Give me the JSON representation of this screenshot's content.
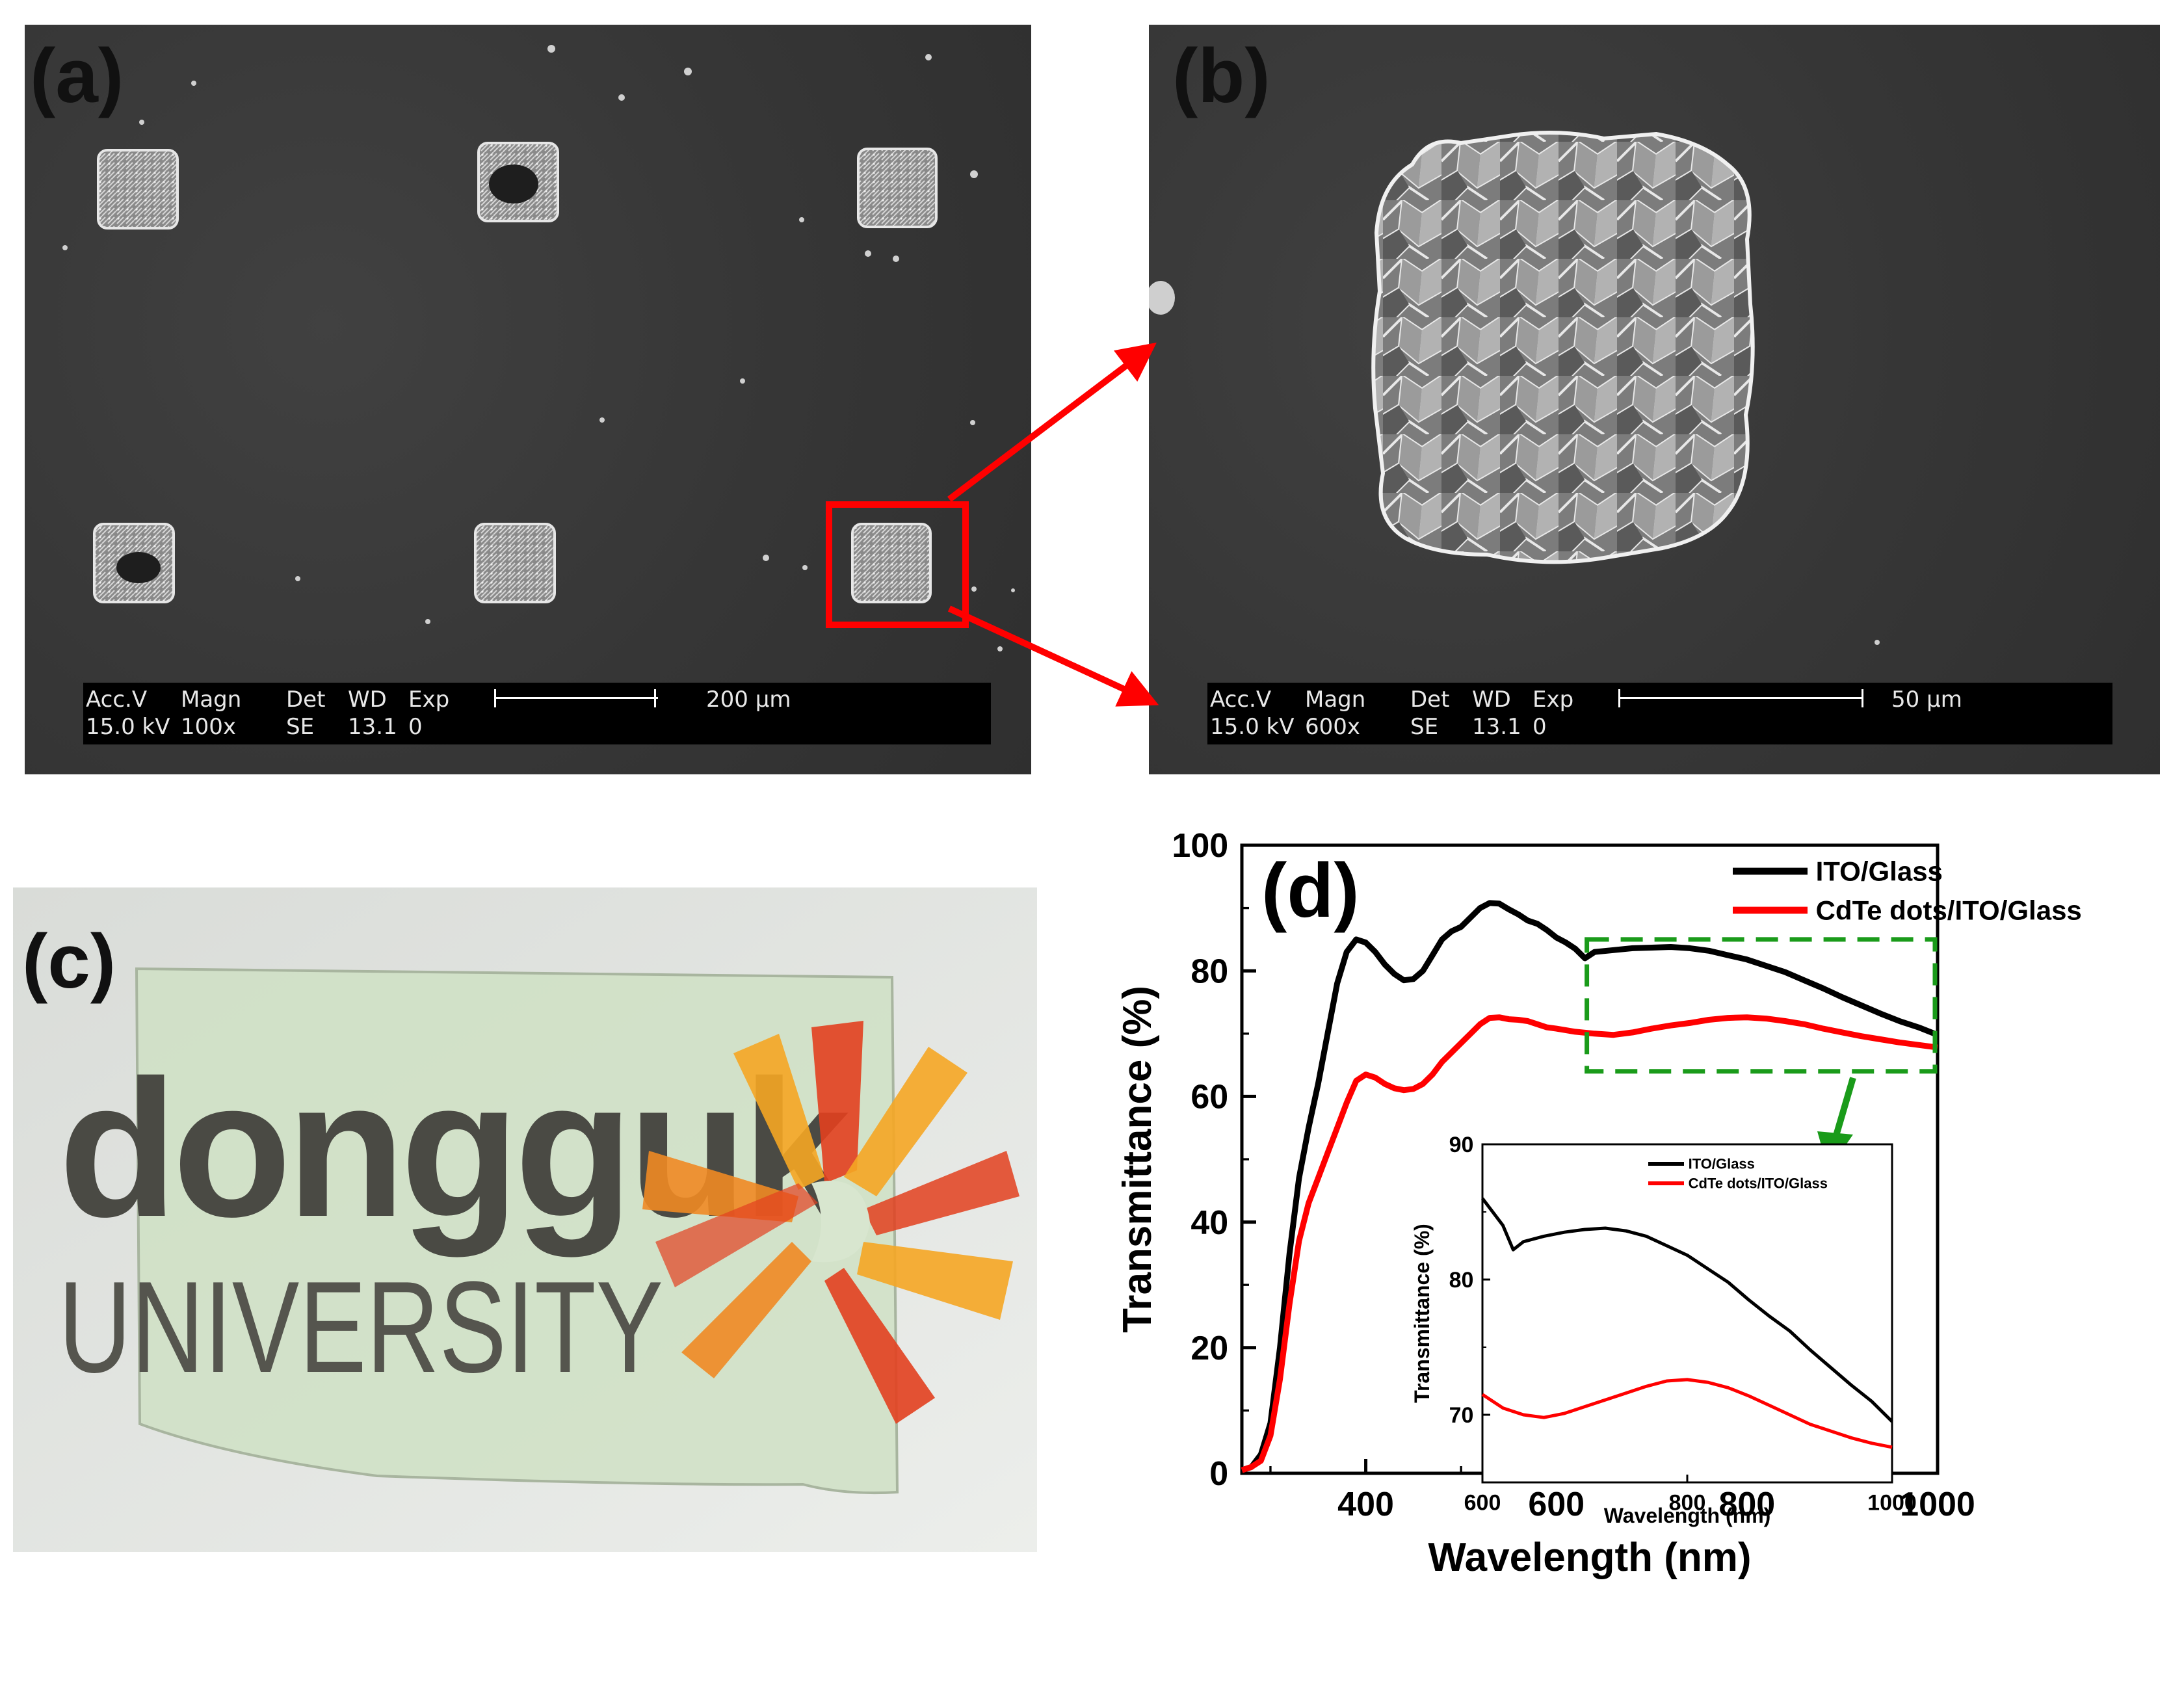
{
  "panels": {
    "a": {
      "letter": "(a)"
    },
    "b": {
      "letter": "(b)"
    },
    "c": {
      "letter": "(c)"
    },
    "d": {
      "letter": "(d)"
    }
  },
  "sem_a": {
    "headers": [
      "Acc.V",
      "Magn",
      "Det",
      "WD",
      "Exp"
    ],
    "values": [
      "15.0 kV",
      "100x",
      "SE",
      "13.1",
      "0"
    ],
    "scale_label": "200 µm"
  },
  "sem_b": {
    "headers": [
      "Acc.V",
      "Magn",
      "Det",
      "WD",
      "Exp"
    ],
    "values": [
      "15.0 kV",
      "600x",
      "SE",
      "13.1",
      "0"
    ],
    "scale_label": "50 µm"
  },
  "photo_c": {
    "logo_line1": "dongguk",
    "logo_line2": "UNIVERSITY",
    "colors": {
      "orange": "#f08a24",
      "red": "#e2401f",
      "yellow": "#f5a623",
      "glass": "#cfe0c4"
    }
  },
  "colors": {
    "ito": "#000000",
    "cdte": "#ff0000",
    "highlight": "#ff0000",
    "zoom_box": "#1a9b1a"
  },
  "chart_data": [
    {
      "type": "line",
      "xlabel": "Wavelength (nm)",
      "ylabel": "Transmittance (%)",
      "xlim": [
        270,
        1000
      ],
      "ylim": [
        0,
        100
      ],
      "xticks": [
        "400",
        "600",
        "800",
        "1000"
      ],
      "yticks": [
        "0",
        "20",
        "40",
        "60",
        "80",
        "100"
      ],
      "legend_position": "top-right",
      "series": [
        {
          "name": "ITO/Glass",
          "color": "#000000",
          "x": [
            270,
            280,
            290,
            300,
            310,
            320,
            330,
            340,
            350,
            360,
            370,
            380,
            390,
            400,
            410,
            420,
            430,
            440,
            450,
            460,
            470,
            480,
            490,
            500,
            510,
            520,
            530,
            540,
            550,
            560,
            570,
            580,
            590,
            600,
            610,
            620,
            630,
            640,
            660,
            680,
            700,
            720,
            740,
            760,
            780,
            800,
            820,
            840,
            860,
            880,
            900,
            920,
            940,
            960,
            980,
            1000
          ],
          "y": [
            0.5,
            1,
            3,
            8,
            20,
            35,
            47,
            55,
            62,
            70,
            78,
            83,
            85,
            84.5,
            83,
            81,
            79.5,
            78.5,
            78.7,
            80,
            82.5,
            85,
            86.3,
            87,
            88.5,
            90,
            90.8,
            90.7,
            89.8,
            89,
            88,
            87.5,
            86.5,
            85.3,
            84.5,
            83.5,
            82,
            83,
            83.3,
            83.6,
            83.7,
            83.8,
            83.6,
            83.2,
            82.5,
            81.8,
            80.8,
            79.8,
            78.5,
            77.2,
            75.8,
            74.5,
            73.2,
            72,
            71,
            69.8
          ]
        },
        {
          "name": "CdTe dots/ITO/Glass",
          "color": "#ff0000",
          "x": [
            270,
            280,
            290,
            300,
            310,
            320,
            330,
            340,
            350,
            360,
            370,
            380,
            390,
            400,
            410,
            420,
            430,
            440,
            450,
            460,
            470,
            480,
            490,
            500,
            510,
            520,
            530,
            540,
            550,
            560,
            570,
            580,
            590,
            600,
            620,
            640,
            660,
            680,
            700,
            720,
            740,
            760,
            780,
            800,
            820,
            840,
            860,
            880,
            900,
            920,
            940,
            960,
            980,
            1000
          ],
          "y": [
            0.5,
            1,
            2,
            6,
            15,
            27,
            37,
            43,
            47,
            51,
            55,
            59,
            62.5,
            63.5,
            63,
            62,
            61.3,
            61,
            61.2,
            62,
            63.5,
            65.5,
            67,
            68.5,
            70,
            71.5,
            72.5,
            72.6,
            72.3,
            72.2,
            72,
            71.5,
            71,
            70.8,
            70.3,
            70,
            69.8,
            70.2,
            70.8,
            71.3,
            71.7,
            72.2,
            72.5,
            72.6,
            72.4,
            72,
            71.5,
            70.8,
            70.2,
            69.6,
            69.1,
            68.6,
            68.2,
            67.8
          ]
        }
      ]
    },
    {
      "type": "line",
      "xlabel": "Wavelength (nm)",
      "ylabel": "Transmittance (%)",
      "xlim": [
        600,
        1000
      ],
      "ylim": [
        65,
        90
      ],
      "xticks": [
        "600",
        "800",
        "1000"
      ],
      "yticks": [
        "70",
        "80",
        "90"
      ],
      "legend_position": "top-right",
      "series": [
        {
          "name": "ITO/Glass",
          "color": "#000000",
          "x": [
            600,
            610,
            620,
            630,
            640,
            660,
            680,
            700,
            720,
            740,
            760,
            780,
            800,
            820,
            840,
            860,
            880,
            900,
            920,
            940,
            960,
            980,
            1000
          ],
          "y": [
            86,
            85,
            84,
            82.2,
            82.8,
            83.2,
            83.5,
            83.7,
            83.8,
            83.6,
            83.2,
            82.5,
            81.8,
            80.8,
            79.8,
            78.5,
            77.3,
            76.2,
            74.8,
            73.5,
            72.2,
            71,
            69.5
          ]
        },
        {
          "name": "CdTe dots/ITO/Glass",
          "color": "#ff0000",
          "x": [
            600,
            620,
            640,
            660,
            680,
            700,
            720,
            740,
            760,
            780,
            800,
            820,
            840,
            860,
            880,
            900,
            920,
            940,
            960,
            980,
            1000
          ],
          "y": [
            71.5,
            70.5,
            70,
            69.8,
            70.1,
            70.6,
            71.1,
            71.6,
            72.1,
            72.5,
            72.6,
            72.4,
            72,
            71.4,
            70.7,
            70,
            69.3,
            68.8,
            68.3,
            67.9,
            67.6
          ]
        }
      ]
    }
  ]
}
